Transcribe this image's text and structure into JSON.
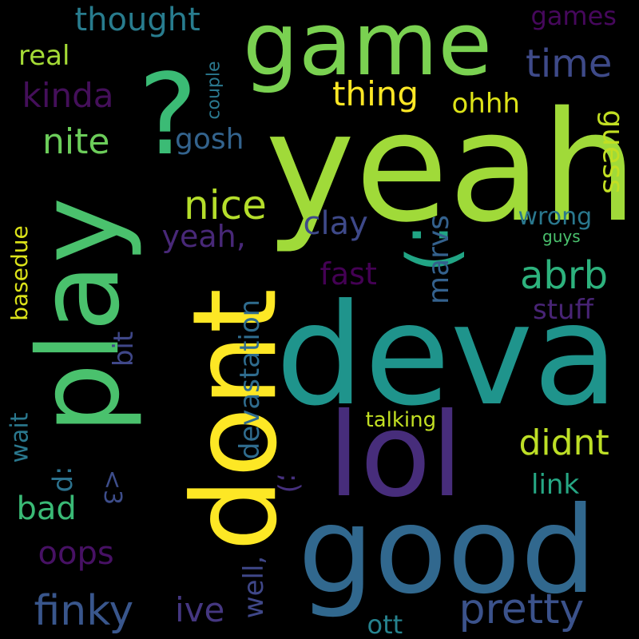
{
  "words": [
    {
      "text": "yeah",
      "color": "#a0da39"
    },
    {
      "text": "deva",
      "color": "#1f948c"
    },
    {
      "text": "good",
      "color": "#31688e"
    },
    {
      "text": "dont",
      "color": "#fde725"
    },
    {
      "text": "game",
      "color": "#7ad151"
    },
    {
      "text": "play",
      "color": "#4ac16d"
    },
    {
      "text": "lol",
      "color": "#472d7b"
    },
    {
      "text": "?",
      "color": "#3bbb75"
    },
    {
      "text": ":)",
      "color": "#21a585"
    },
    {
      "text": "finky",
      "color": "#39568c"
    },
    {
      "text": "pretty",
      "color": "#3b528b"
    },
    {
      "text": "time",
      "color": "#3e4a89"
    },
    {
      "text": "abrb",
      "color": "#2db27d"
    },
    {
      "text": "nice",
      "color": "#b5de2b"
    },
    {
      "text": "didnt",
      "color": "#bddf26"
    },
    {
      "text": "thought",
      "color": "#287c8e"
    },
    {
      "text": "kinda",
      "color": "#440f5a"
    },
    {
      "text": "nite",
      "color": "#6ccd5a"
    },
    {
      "text": "thing",
      "color": "#fde725"
    },
    {
      "text": "clay",
      "color": "#3e4989"
    },
    {
      "text": "guess",
      "color": "#c2df23"
    },
    {
      "text": "oops",
      "color": "#471164"
    },
    {
      "text": "gosh",
      "color": "#33638d"
    },
    {
      "text": "ohhh",
      "color": "#dde318"
    },
    {
      "text": "fast",
      "color": "#440154"
    },
    {
      "text": "wrong",
      "color": "#2a788e"
    },
    {
      "text": "stuff",
      "color": "#482475"
    },
    {
      "text": "real",
      "color": "#a5db36"
    },
    {
      "text": "games",
      "color": "#46085c"
    },
    {
      "text": "yeah,",
      "color": "#482878"
    },
    {
      "text": "marvs",
      "color": "#34618d"
    },
    {
      "text": "devastation",
      "color": "#2f6c8e"
    },
    {
      "text": "well,",
      "color": "#3f4788"
    },
    {
      "text": "basedue",
      "color": "#dce319"
    },
    {
      "text": "bad",
      "color": "#3aba76"
    },
    {
      "text": "link",
      "color": "#26a784"
    },
    {
      "text": "wait",
      "color": "#2a788e"
    },
    {
      "text": "bit",
      "color": "#3f4788"
    },
    {
      "text": ":p",
      "color": "#2c728e"
    },
    {
      "text": "<3",
      "color": "#3d4d8a"
    },
    {
      "text": ";)",
      "color": "#46307e"
    },
    {
      "text": "ive",
      "color": "#453781"
    },
    {
      "text": "ott",
      "color": "#26828e"
    },
    {
      "text": "talking",
      "color": "#c2df23"
    },
    {
      "text": "couple",
      "color": "#2a788e"
    },
    {
      "text": "guys",
      "color": "#4ac16d"
    }
  ]
}
